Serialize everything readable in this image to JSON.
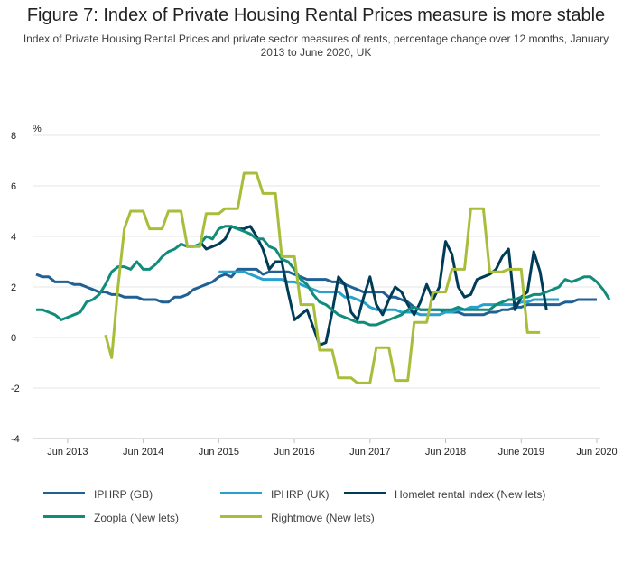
{
  "title": "Figure 7: Index of Private Housing Rental Prices measure is more stable",
  "subtitle": "Index of Private Housing Rental Prices and private sector measures of rents, percentage change over 12 months, January 2013 to June 2020, UK",
  "chart_data": {
    "type": "line",
    "ylabel": "%",
    "ylim": [
      -4,
      8
    ],
    "yticks": [
      -4,
      -2,
      0,
      2,
      4,
      6,
      8
    ],
    "x_start": "2013-01",
    "x_end": "2020-06",
    "xticks": [
      "Jun 2013",
      "Jun 2014",
      "Jun 2015",
      "Jun 2016",
      "Jun 2017",
      "Jun 2018",
      "June 2019",
      "Jun 2020"
    ],
    "grid": true,
    "legend_position": "bottom",
    "series": [
      {
        "name": "IPHRP (GB)",
        "color": "#206095",
        "start": "2013-01",
        "values": [
          2.5,
          2.4,
          2.4,
          2.2,
          2.2,
          2.2,
          2.1,
          2.1,
          2.0,
          1.9,
          1.8,
          1.8,
          1.7,
          1.7,
          1.6,
          1.6,
          1.6,
          1.5,
          1.5,
          1.5,
          1.4,
          1.4,
          1.6,
          1.6,
          1.7,
          1.9,
          2.0,
          2.1,
          2.2,
          2.4,
          2.5,
          2.4,
          2.7,
          2.7,
          2.7,
          2.7,
          2.5,
          2.6,
          2.6,
          2.6,
          2.6,
          2.5,
          2.4,
          2.3,
          2.3,
          2.3,
          2.3,
          2.2,
          2.2,
          2.1,
          2.0,
          1.9,
          1.8,
          1.8,
          1.8,
          1.8,
          1.6,
          1.6,
          1.5,
          1.4,
          1.2,
          1.1,
          1.1,
          1.1,
          1.1,
          1.0,
          1.0,
          1.0,
          0.9,
          0.9,
          0.9,
          0.9,
          1.0,
          1.0,
          1.1,
          1.1,
          1.2,
          1.2,
          1.3,
          1.3,
          1.3,
          1.3,
          1.3,
          1.3,
          1.4,
          1.4,
          1.5,
          1.5,
          1.5,
          1.5
        ]
      },
      {
        "name": "IPHRP (UK)",
        "color": "#27a0cc",
        "start": "2015-06",
        "values": [
          2.6,
          2.6,
          2.6,
          2.6,
          2.6,
          2.5,
          2.4,
          2.3,
          2.3,
          2.3,
          2.3,
          2.2,
          2.2,
          2.1,
          2.0,
          1.9,
          1.8,
          1.8,
          1.8,
          1.8,
          1.6,
          1.6,
          1.5,
          1.4,
          1.2,
          1.1,
          1.1,
          1.1,
          1.1,
          1.0,
          1.0,
          1.0,
          0.9,
          0.9,
          0.9,
          0.9,
          1.0,
          1.0,
          1.1,
          1.1,
          1.2,
          1.2,
          1.3,
          1.3,
          1.3,
          1.3,
          1.3,
          1.3,
          1.4,
          1.4,
          1.5,
          1.5,
          1.5,
          1.5,
          1.5
        ]
      },
      {
        "name": "Homelet rental index (New lets)",
        "color": "#003c57",
        "start": "2015-03",
        "values": [
          3.8,
          3.5,
          3.6,
          3.7,
          3.9,
          4.4,
          4.3,
          4.3,
          4.4,
          4.0,
          3.5,
          2.7,
          3.0,
          3.0,
          1.8,
          0.7,
          0.9,
          1.1,
          0.4,
          -0.3,
          -0.2,
          1.0,
          2.4,
          2.1,
          1.0,
          0.7,
          1.6,
          2.4,
          1.3,
          0.9,
          1.5,
          2.0,
          1.8,
          1.3,
          0.9,
          1.4,
          2.1,
          1.5,
          2.0,
          3.8,
          3.3,
          2.0,
          1.6,
          1.7,
          2.3,
          2.4,
          2.5,
          2.7,
          3.2,
          3.5,
          1.1,
          1.6,
          1.8,
          3.4,
          2.6,
          1.1
        ]
      },
      {
        "name": "Zoopla (New lets)",
        "color": "#118c7b",
        "start": "2013-01",
        "values": [
          1.1,
          1.1,
          1.0,
          0.9,
          0.7,
          0.8,
          0.9,
          1.0,
          1.4,
          1.5,
          1.7,
          2.1,
          2.6,
          2.8,
          2.8,
          2.7,
          3.0,
          2.7,
          2.7,
          2.9,
          3.2,
          3.4,
          3.5,
          3.7,
          3.6,
          3.6,
          3.7,
          4.0,
          3.9,
          4.3,
          4.4,
          4.4,
          4.3,
          4.2,
          4.1,
          3.9,
          3.9,
          3.6,
          3.5,
          3.1,
          3.0,
          2.7,
          2.3,
          2.1,
          1.7,
          1.4,
          1.3,
          1.1,
          0.9,
          0.8,
          0.7,
          0.6,
          0.6,
          0.5,
          0.5,
          0.6,
          0.7,
          0.8,
          0.9,
          1.1,
          1.2,
          1.1,
          1.1,
          1.1,
          1.1,
          1.1,
          1.1,
          1.2,
          1.1,
          1.1,
          1.1,
          1.1,
          1.1,
          1.3,
          1.4,
          1.5,
          1.5,
          1.6,
          1.6,
          1.7,
          1.7,
          1.8,
          1.9,
          2.0,
          2.3,
          2.2,
          2.3,
          2.4,
          2.4,
          2.2,
          1.9,
          1.5
        ]
      },
      {
        "name": "Rightmove (New lets)",
        "color": "#a8bd3a",
        "start": "2013-12",
        "values": [
          0.1,
          -0.8,
          2.0,
          4.3,
          5.0,
          5.0,
          5.0,
          4.3,
          4.3,
          4.3,
          5.0,
          5.0,
          5.0,
          3.6,
          3.6,
          3.6,
          4.9,
          4.9,
          4.9,
          5.1,
          5.1,
          5.1,
          6.5,
          6.5,
          6.5,
          5.7,
          5.7,
          5.7,
          3.2,
          3.2,
          3.2,
          1.3,
          1.3,
          1.3,
          -0.5,
          -0.5,
          -0.5,
          -1.6,
          -1.6,
          -1.6,
          -1.8,
          -1.8,
          -1.8,
          -0.4,
          -0.4,
          -0.4,
          -1.7,
          -1.7,
          -1.7,
          0.6,
          0.6,
          0.6,
          1.8,
          1.8,
          1.8,
          2.7,
          2.7,
          2.7,
          5.1,
          5.1,
          5.1,
          2.6,
          2.6,
          2.6,
          2.7,
          2.7,
          2.7,
          0.2,
          0.2,
          0.2
        ]
      }
    ]
  }
}
